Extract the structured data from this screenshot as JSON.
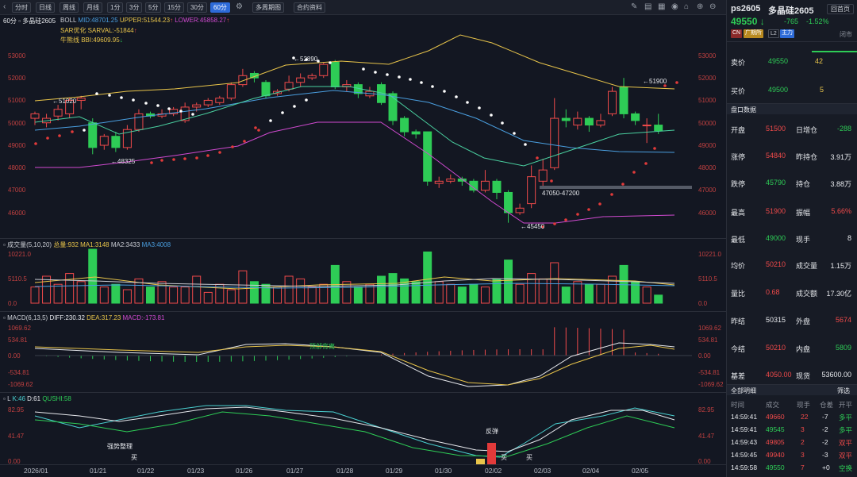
{
  "toolbar": {
    "buttons": [
      "分时",
      "日线",
      "周线",
      "月线",
      "1分",
      "3分",
      "5分",
      "15分",
      "30分",
      "60分",
      "多周期图",
      "合约资料"
    ],
    "active": "60分"
  },
  "chart": {
    "period": "60分",
    "name": "多晶硅2605",
    "boll": {
      "label": "BOLL",
      "mid": "MID:48701.25",
      "upper": "UPPER:51544.23",
      "lower": "LOWER:45858.27"
    },
    "sar": "SAR优化 SARVAL:-51844",
    "bbi": "牛熊线 BBI:49609.95",
    "price_axis": [
      "53000",
      "52000",
      "51000",
      "50000",
      "49000",
      "48000",
      "47000",
      "46000"
    ],
    "annotations": {
      "a1": "51020",
      "a2": "48325",
      "a3": "52890",
      "a4": "51900",
      "a5": "47050-47200",
      "a6": "45450"
    },
    "vol": {
      "label": "成交量(5,10,20)",
      "total": "总量:932",
      "ma1": "MA1:3148",
      "ma2": "MA2:3433",
      "ma3": "MA3:4008",
      "axis": [
        "10221.0",
        "5110.5",
        "0.0"
      ]
    },
    "macd": {
      "label": "MACD(6,13,5)",
      "diff": "DIFF:230.32",
      "dea": "DEA:317.23",
      "macd": "MACD:-173.81",
      "axis": [
        "1069.62",
        "534.81",
        "0.00",
        "-534.81",
        "-1069.62"
      ],
      "note": "顶部背离"
    },
    "kd": {
      "label": "L",
      "k": "K:46",
      "d": "D:61",
      "qushi": "QUSHI:58",
      "axis": [
        "82.95",
        "41.47",
        "0.00"
      ],
      "notes": {
        "n1": "强势整理",
        "n2": "买",
        "n3": "反弹",
        "n4": "买",
        "n5": "买"
      }
    },
    "x_labels": [
      "2026/01",
      "01/21",
      "01/22",
      "01/23",
      "01/26",
      "01/27",
      "01/28",
      "01/29",
      "01/30",
      "02/02",
      "02/03",
      "02/04",
      "02/05"
    ]
  },
  "side": {
    "code": "ps2605",
    "name": "多晶硅2605",
    "back": "回首页",
    "price": "49550",
    "change": "-765",
    "pct": "-1.52%",
    "tags": [
      "CN",
      "广期所",
      "L2",
      "主力"
    ],
    "status": "闭市",
    "ask_label": "卖价",
    "ask": "49550",
    "ask_vol": "42",
    "bid_label": "买价",
    "bid": "49500",
    "bid_vol": "5",
    "section": "盘口数据",
    "rows": [
      {
        "l1": "开盘",
        "v1": "51500",
        "l2": "日增仓",
        "v2": "-288"
      },
      {
        "l1": "涨停",
        "v1": "54840",
        "l2": "昨持仓",
        "v2": "3.91万"
      },
      {
        "l1": "跌停",
        "v1": "45790",
        "l2": "持仓",
        "v2": "3.88万"
      },
      {
        "l1": "最高",
        "v1": "51900",
        "l2": "振幅",
        "v2": "5.66%"
      },
      {
        "l1": "最低",
        "v1": "49000",
        "l2": "现手",
        "v2": "8"
      },
      {
        "l1": "均价",
        "v1": "50210",
        "l2": "成交量",
        "v2": "1.15万"
      },
      {
        "l1": "量比",
        "v1": "0.68",
        "l2": "成交额",
        "v2": "17.30亿"
      },
      {
        "l1": "昨结",
        "v1": "50315",
        "l2": "外盘",
        "v2": "5674"
      },
      {
        "l1": "今结",
        "v1": "50210",
        "l2": "内盘",
        "v2": "5809"
      },
      {
        "l1": "基差",
        "v1": "4050.00",
        "l2": "现货",
        "v2": "53600.00"
      }
    ],
    "trades_title": "全部明细",
    "trades_filter": "筛选",
    "trades_headers": [
      "时间",
      "成交",
      "现手",
      "仓差",
      "开平"
    ],
    "trades": [
      {
        "t": "14:59:41",
        "p": "49660",
        "v": "22",
        "d": "-7",
        "k": "多平"
      },
      {
        "t": "14:59:41",
        "p": "49545",
        "v": "3",
        "d": "-2",
        "k": "多平"
      },
      {
        "t": "14:59:43",
        "p": "49805",
        "v": "2",
        "d": "-2",
        "k": "双平"
      },
      {
        "t": "14:59:45",
        "p": "49940",
        "v": "3",
        "d": "-3",
        "k": "双平"
      },
      {
        "t": "14:59:58",
        "p": "49550",
        "v": "7",
        "d": "+0",
        "k": "空换"
      }
    ]
  }
}
